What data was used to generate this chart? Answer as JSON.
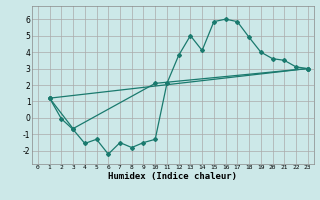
{
  "xlabel": "Humidex (Indice chaleur)",
  "bg_color": "#cce8e8",
  "grid_color": "#aaaaaa",
  "line_color": "#1a7a6e",
  "xlim": [
    -0.5,
    23.5
  ],
  "ylim": [
    -2.8,
    6.8
  ],
  "xticks": [
    0,
    1,
    2,
    3,
    4,
    5,
    6,
    7,
    8,
    9,
    10,
    11,
    12,
    13,
    14,
    15,
    16,
    17,
    18,
    19,
    20,
    21,
    22,
    23
  ],
  "yticks": [
    -2,
    -1,
    0,
    1,
    2,
    3,
    4,
    5,
    6
  ],
  "series1_x": [
    1,
    2,
    3,
    4,
    5,
    6,
    7,
    8,
    9,
    10,
    11,
    12,
    13,
    14,
    15,
    16,
    17,
    18,
    19,
    20,
    21,
    22,
    23
  ],
  "series1_y": [
    1.2,
    -0.05,
    -0.7,
    -1.55,
    -1.3,
    -2.2,
    -1.5,
    -1.8,
    -1.5,
    -1.3,
    2.1,
    3.8,
    5.0,
    4.1,
    5.85,
    6.0,
    5.85,
    4.9,
    4.0,
    3.6,
    3.5,
    3.1,
    3.0
  ],
  "series2_x": [
    1,
    23
  ],
  "series2_y": [
    1.2,
    3.0
  ],
  "series3_x": [
    1,
    3,
    10,
    23
  ],
  "series3_y": [
    1.2,
    -0.65,
    2.1,
    3.0
  ]
}
